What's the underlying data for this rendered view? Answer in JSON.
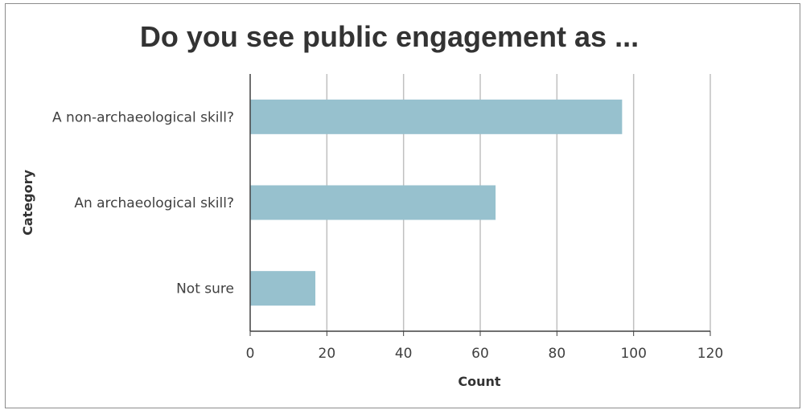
{
  "chart_data": {
    "type": "bar",
    "orientation": "horizontal",
    "title": "Do you see public engagement as ...",
    "xlabel": "Count",
    "ylabel": "Category",
    "categories": [
      "A non-archaeological skill?",
      "An archaeological skill?",
      "Not sure"
    ],
    "values": [
      97,
      64,
      17
    ],
    "xlim": [
      0,
      120
    ],
    "xticks": [
      "0",
      "20",
      "40",
      "60",
      "80",
      "100",
      "120"
    ],
    "grid": "vertical",
    "legend": "none",
    "bar_color": "#97c1ce",
    "grid_color": "#c0c0c0",
    "axis_color": "#404040"
  }
}
